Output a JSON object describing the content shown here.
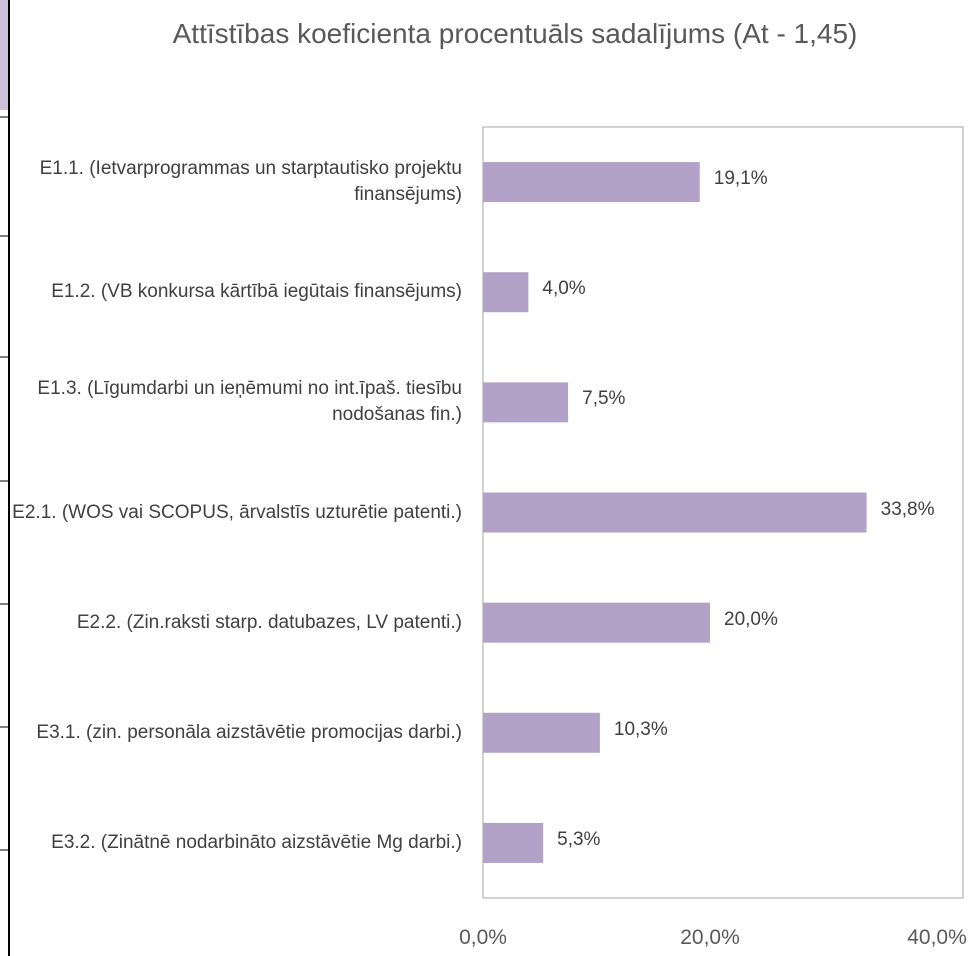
{
  "chart_data": {
    "type": "bar",
    "orientation": "horizontal",
    "title": "Attīstības koeficienta procentuāls sadalījums (At - 1,45)",
    "categories": [
      "E1.1. (Ietvarprogrammas un starptautisko projektu finansējums)",
      "E1.2. (VB konkursa kārtībā iegūtais finansējums)",
      "E1.3. (Līgumdarbi un ieņēmumi no int.īpaš. tiesību nodošanas fin.)",
      "E2.1. (WOS vai SCOPUS, ārvalstīs uzturētie patenti.)",
      "E2.2. (Zin.raksti starp. datubazes, LV patenti.)",
      "E3.1. (zin. personāla aizstāvētie promocijas darbi.)",
      "E3.2. (Zinātnē nodarbināto aizstāvētie Mg darbi.)"
    ],
    "values": [
      19.1,
      4.0,
      7.5,
      33.8,
      20.0,
      10.3,
      5.3
    ],
    "value_labels": [
      "19,1%",
      "4,0%",
      "7,5%",
      "33,8%",
      "20,0%",
      "10,3%",
      "5,3%"
    ],
    "color": "#b3a2c7",
    "xlim": [
      0,
      40
    ],
    "xticks": [
      {
        "value": 0,
        "label": "0,0%"
      },
      {
        "value": 20,
        "label": "20,0%"
      },
      {
        "value": 40,
        "label": "40,0%"
      }
    ],
    "grid": false
  }
}
